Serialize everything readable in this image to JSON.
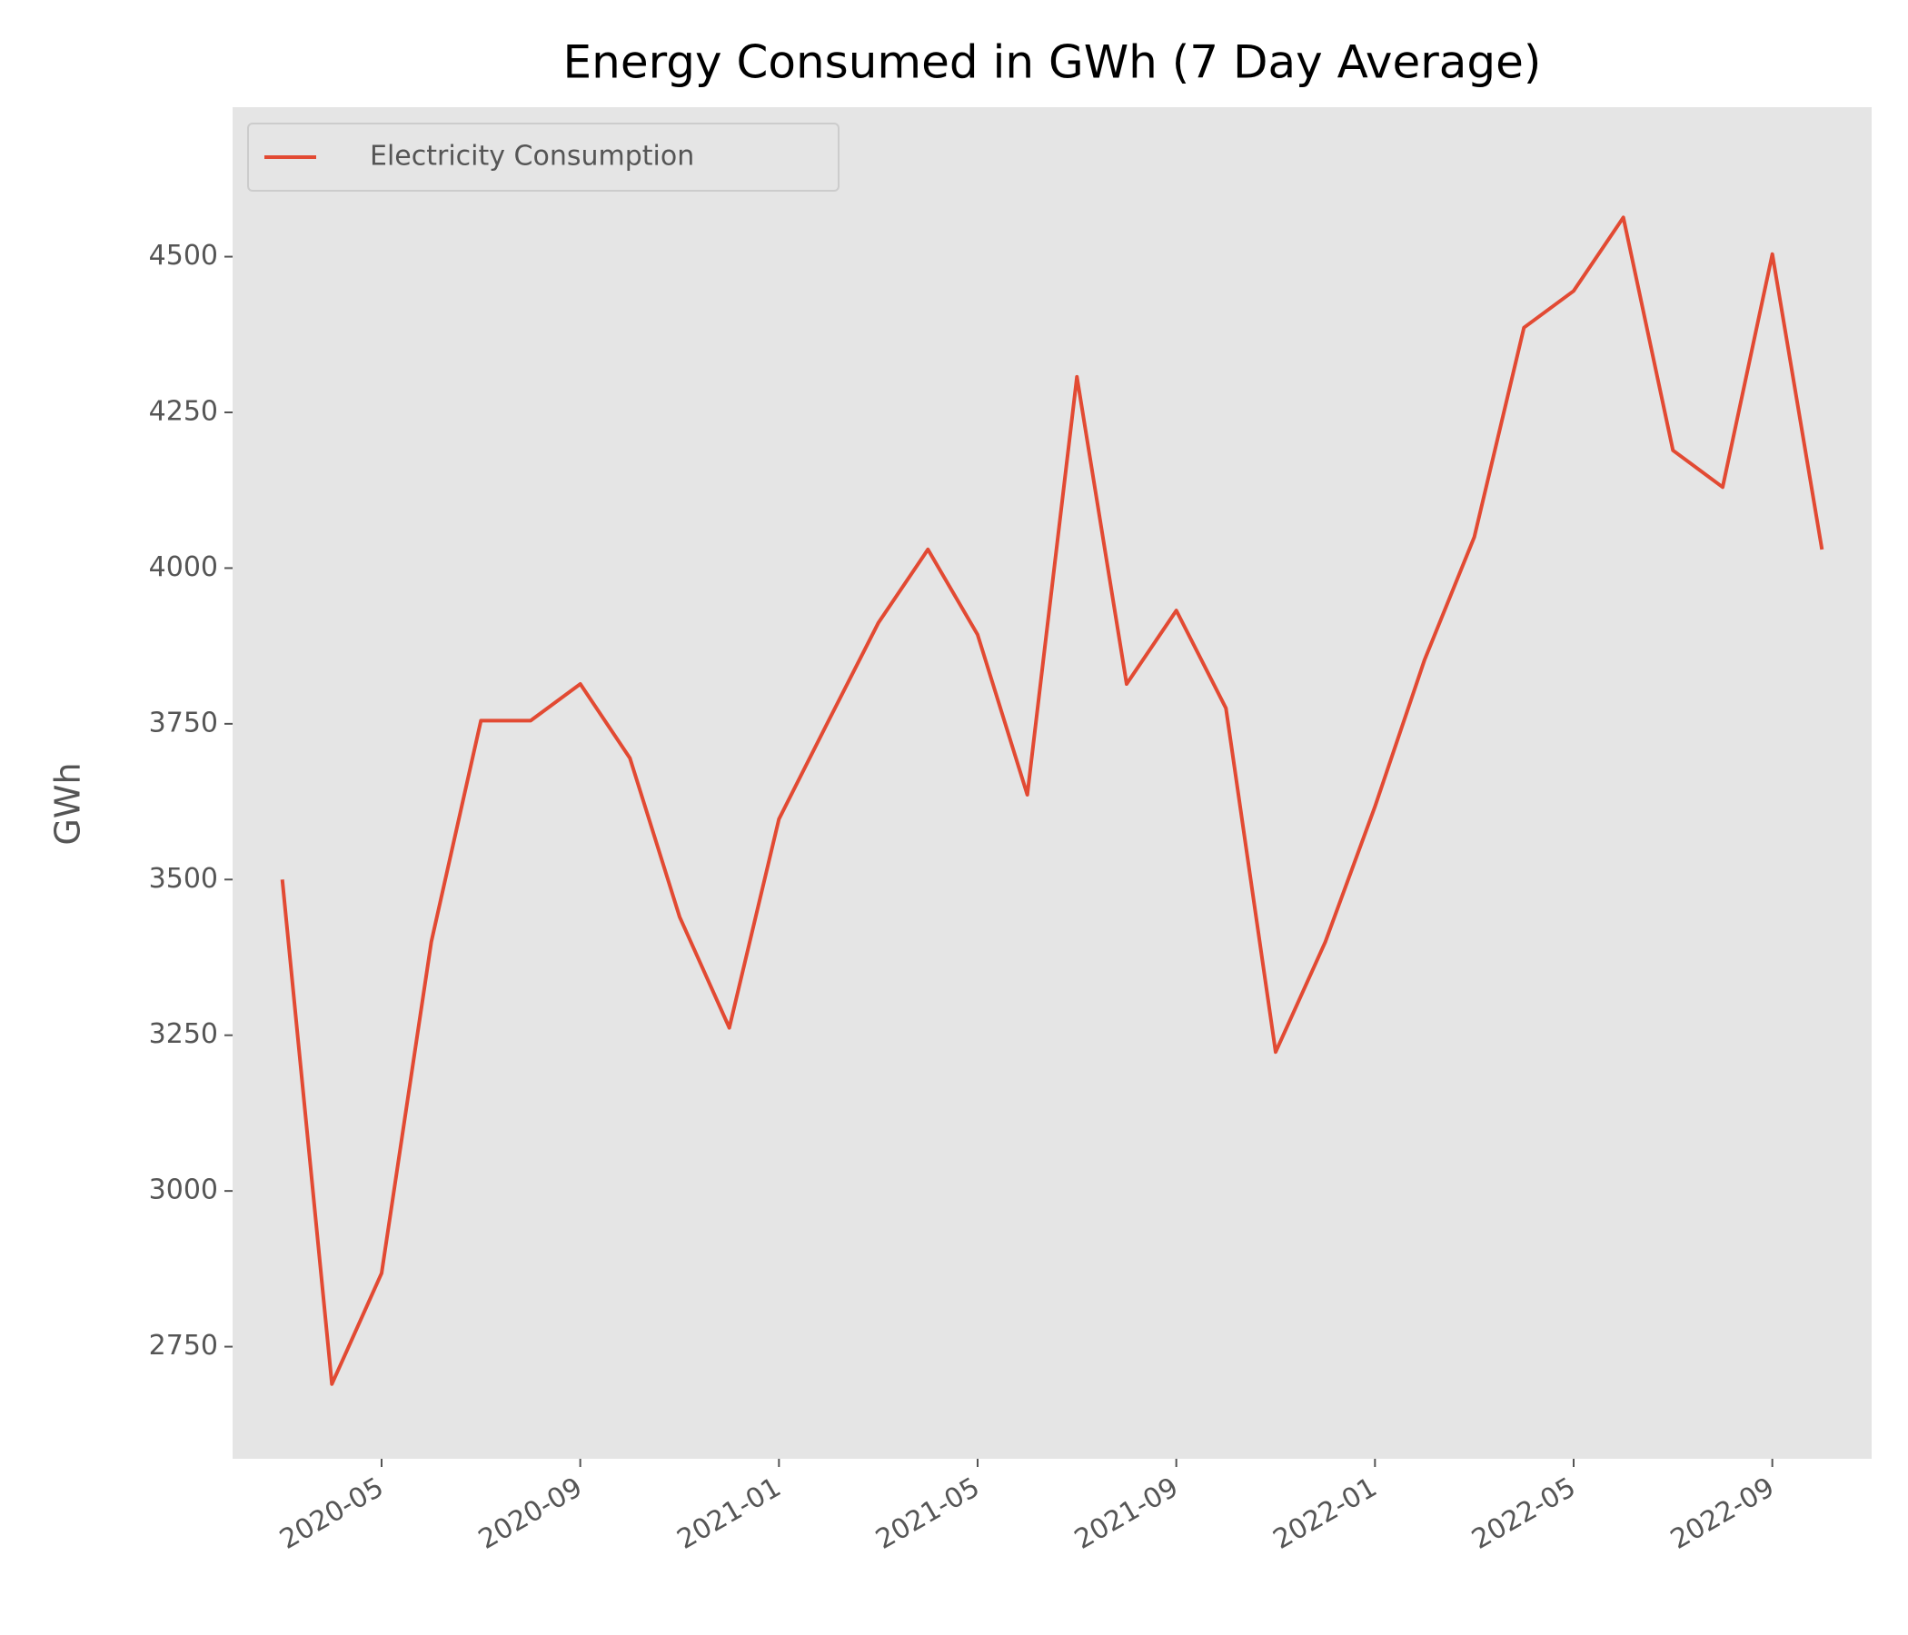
{
  "chart_data": {
    "type": "line",
    "title": "Energy Consumed in GWh (7 Day Average)",
    "y_label": "GWh",
    "x": [
      "2020-03",
      "2020-04",
      "2020-05",
      "2020-06",
      "2020-07",
      "2020-08",
      "2020-09",
      "2020-10",
      "2020-11",
      "2020-12",
      "2021-01",
      "2021-02",
      "2021-03",
      "2021-04",
      "2021-05",
      "2021-06",
      "2021-07",
      "2021-08",
      "2021-09",
      "2021-10",
      "2021-11",
      "2021-12",
      "2022-01",
      "2022-02",
      "2022-03",
      "2022-04",
      "2022-05",
      "2022-06",
      "2022-07",
      "2022-08",
      "2022-09",
      "2022-10"
    ],
    "series": [
      {
        "name": "Electricity Consumption",
        "color": "#e24a33",
        "values": [
          3500,
          2690,
          2868,
          3400,
          3755,
          3755,
          3814,
          3695,
          3440,
          3262,
          3597,
          3755,
          3912,
          4030,
          3893,
          3636,
          4307,
          3814,
          3932,
          3775,
          3223,
          3400,
          3617,
          3853,
          4050,
          4386,
          4445,
          4563,
          4189,
          4130,
          4504,
          4030
        ]
      }
    ],
    "xlim": [
      "2020-02",
      "2022-11"
    ],
    "xticks": [
      "2020-05",
      "2020-09",
      "2021-01",
      "2021-05",
      "2021-09",
      "2022-01",
      "2022-05",
      "2022-09"
    ],
    "ylim": [
      2570,
      4740
    ],
    "yticks": [
      2750,
      3000,
      3250,
      3500,
      3750,
      4000,
      4250,
      4500
    ],
    "background": "#e5e5e5",
    "legend": "upper left"
  }
}
